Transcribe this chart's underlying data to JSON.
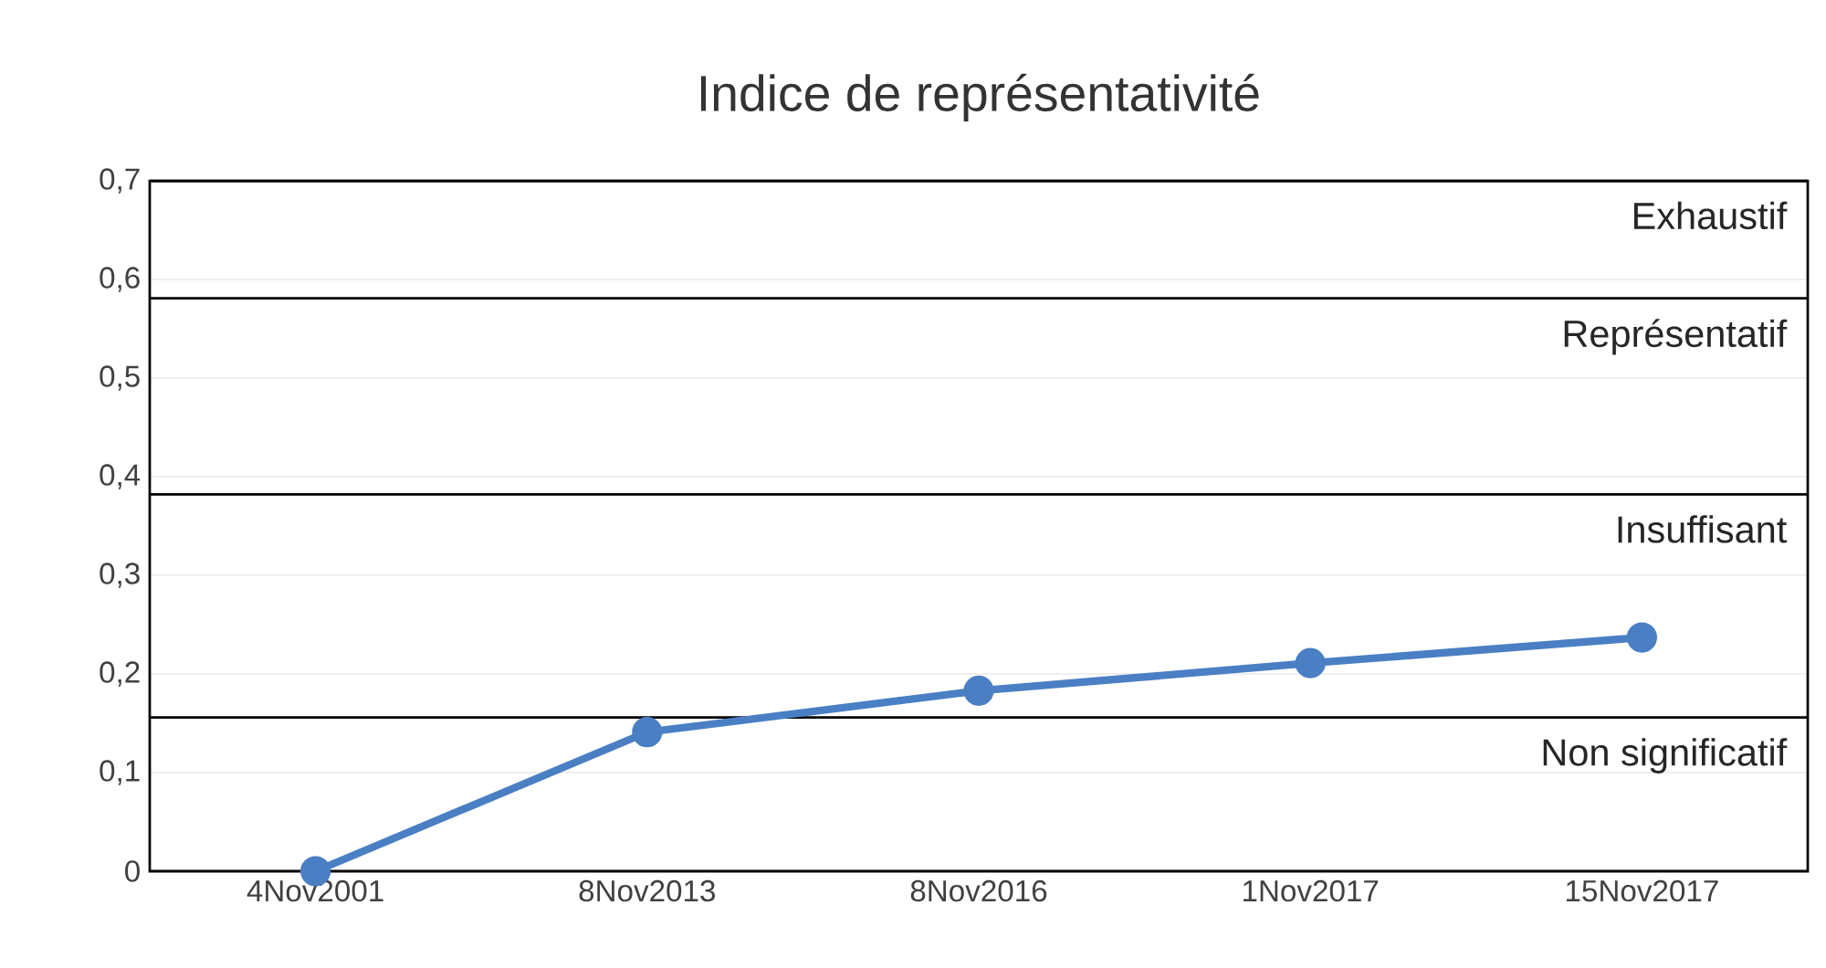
{
  "chart_data": {
    "type": "line",
    "title": "Indice de représentativité",
    "categories": [
      "4Nov2001",
      "8Nov2013",
      "8Nov2016",
      "1Nov2017",
      "15Nov2017"
    ],
    "series": [
      {
        "color": "#4a7fc4",
        "values": [
          0,
          0.141,
          0.183,
          0.211,
          0.237
        ]
      }
    ],
    "ylim": [
      0,
      0.7
    ],
    "yticks": [
      0,
      {
        "value": 0.1,
        "label": "0,1"
      },
      {
        "value": 0.2,
        "label": "0,2"
      },
      {
        "value": 0.3,
        "label": "0,3"
      },
      {
        "value": 0.4,
        "label": "0,4"
      },
      {
        "value": 0.5,
        "label": "0,5"
      },
      {
        "value": 0.6,
        "label": "0,6"
      },
      {
        "value": 0.7,
        "label": "0,7"
      }
    ],
    "ref_lines": [
      {
        "axis": "y",
        "value": 0.156,
        "label": "Non significatif"
      },
      {
        "axis": "y",
        "value": 0.382,
        "label": "Insuffisant"
      },
      {
        "axis": "y",
        "value": 0.581,
        "label": "Représentatif"
      },
      {
        "axis": "y",
        "value": 0.7,
        "label": "Exhaustif"
      }
    ],
    "grid": "y",
    "marker": "circle",
    "line_style": "solid"
  }
}
